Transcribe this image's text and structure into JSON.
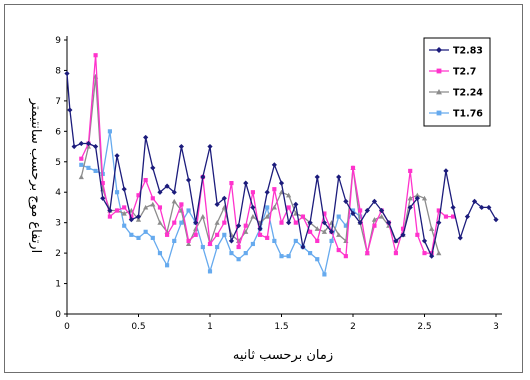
{
  "chart_data": {
    "type": "line",
    "title": "",
    "xlabel": "زمان برحسب ثانیه",
    "ylabel": "ارتفاع موج برحسب سانتیمتر",
    "xlim": [
      0,
      3
    ],
    "ylim": [
      0,
      9
    ],
    "x_ticks": [
      "0",
      "0.5",
      "1",
      "1.5",
      "2",
      "2.5",
      "3"
    ],
    "y_ticks": [
      "0",
      "1",
      "2",
      "3",
      "4",
      "5",
      "6",
      "7",
      "8",
      "9"
    ],
    "grid": false,
    "legend_position": "top-right",
    "series": [
      {
        "name": "T2.83",
        "color": "#1c1c7c",
        "marker": "diamond",
        "points": [
          [
            0,
            7.9
          ],
          [
            0.02,
            6.7
          ],
          [
            0.05,
            5.5
          ],
          [
            0.1,
            5.6
          ],
          [
            0.15,
            5.6
          ],
          [
            0.2,
            5.5
          ],
          [
            0.25,
            3.8
          ],
          [
            0.3,
            3.4
          ],
          [
            0.35,
            5.2
          ],
          [
            0.4,
            4.1
          ],
          [
            0.45,
            3.1
          ],
          [
            0.5,
            3.2
          ],
          [
            0.55,
            5.8
          ],
          [
            0.6,
            4.8
          ],
          [
            0.65,
            4.0
          ],
          [
            0.7,
            4.2
          ],
          [
            0.75,
            4.0
          ],
          [
            0.8,
            5.5
          ],
          [
            0.85,
            4.4
          ],
          [
            0.9,
            3.0
          ],
          [
            0.95,
            4.5
          ],
          [
            1.0,
            5.5
          ],
          [
            1.05,
            3.6
          ],
          [
            1.1,
            3.8
          ],
          [
            1.15,
            2.4
          ],
          [
            1.2,
            2.9
          ],
          [
            1.25,
            4.3
          ],
          [
            1.3,
            3.5
          ],
          [
            1.35,
            2.8
          ],
          [
            1.4,
            4.0
          ],
          [
            1.45,
            4.9
          ],
          [
            1.5,
            4.3
          ],
          [
            1.55,
            3.0
          ],
          [
            1.6,
            3.6
          ],
          [
            1.65,
            2.2
          ],
          [
            1.7,
            3.0
          ],
          [
            1.75,
            4.5
          ],
          [
            1.8,
            3.0
          ],
          [
            1.85,
            2.7
          ],
          [
            1.9,
            4.5
          ],
          [
            1.95,
            3.7
          ],
          [
            2.0,
            3.3
          ],
          [
            2.05,
            3.0
          ],
          [
            2.1,
            3.4
          ],
          [
            2.15,
            3.7
          ],
          [
            2.2,
            3.4
          ],
          [
            2.25,
            3.0
          ],
          [
            2.3,
            2.4
          ],
          [
            2.35,
            2.6
          ],
          [
            2.4,
            3.5
          ],
          [
            2.45,
            3.8
          ],
          [
            2.5,
            2.4
          ],
          [
            2.55,
            1.9
          ],
          [
            2.6,
            3.0
          ],
          [
            2.65,
            4.7
          ],
          [
            2.7,
            3.5
          ],
          [
            2.75,
            2.5
          ],
          [
            2.8,
            3.2
          ],
          [
            2.85,
            3.7
          ],
          [
            2.9,
            3.5
          ],
          [
            2.95,
            3.5
          ],
          [
            3.0,
            3.1
          ]
        ]
      },
      {
        "name": "T2.7",
        "color": "#ff33cc",
        "marker": "square",
        "points": [
          [
            0.1,
            5.1
          ],
          [
            0.15,
            5.6
          ],
          [
            0.2,
            8.5
          ],
          [
            0.25,
            4.3
          ],
          [
            0.3,
            3.2
          ],
          [
            0.35,
            3.4
          ],
          [
            0.4,
            3.5
          ],
          [
            0.45,
            3.2
          ],
          [
            0.5,
            3.9
          ],
          [
            0.55,
            4.4
          ],
          [
            0.6,
            3.8
          ],
          [
            0.65,
            3.5
          ],
          [
            0.7,
            2.6
          ],
          [
            0.75,
            3.0
          ],
          [
            0.8,
            3.6
          ],
          [
            0.85,
            2.4
          ],
          [
            0.9,
            2.6
          ],
          [
            0.95,
            4.5
          ],
          [
            1.0,
            2.3
          ],
          [
            1.05,
            2.6
          ],
          [
            1.1,
            3.0
          ],
          [
            1.15,
            4.3
          ],
          [
            1.2,
            2.2
          ],
          [
            1.25,
            2.9
          ],
          [
            1.3,
            4.0
          ],
          [
            1.35,
            2.6
          ],
          [
            1.4,
            2.5
          ],
          [
            1.45,
            4.1
          ],
          [
            1.5,
            3.0
          ],
          [
            1.55,
            3.5
          ],
          [
            1.6,
            3.0
          ],
          [
            1.65,
            3.2
          ],
          [
            1.7,
            2.7
          ],
          [
            1.75,
            2.4
          ],
          [
            1.8,
            3.3
          ],
          [
            1.85,
            2.7
          ],
          [
            1.9,
            2.1
          ],
          [
            1.95,
            1.9
          ],
          [
            2.0,
            4.8
          ],
          [
            2.05,
            3.4
          ],
          [
            2.1,
            2.0
          ],
          [
            2.15,
            2.9
          ],
          [
            2.2,
            3.4
          ],
          [
            2.25,
            3.0
          ],
          [
            2.3,
            2.0
          ],
          [
            2.35,
            2.8
          ],
          [
            2.4,
            4.7
          ],
          [
            2.45,
            2.6
          ],
          [
            2.5,
            2.0
          ],
          [
            2.55,
            2.0
          ],
          [
            2.6,
            3.4
          ],
          [
            2.65,
            3.2
          ],
          [
            2.7,
            3.2
          ]
        ]
      },
      {
        "name": "T2.24",
        "color": "#8c8c8c",
        "marker": "triangle",
        "points": [
          [
            0.1,
            4.5
          ],
          [
            0.15,
            5.5
          ],
          [
            0.2,
            7.8
          ],
          [
            0.25,
            4.1
          ],
          [
            0.3,
            3.4
          ],
          [
            0.35,
            3.4
          ],
          [
            0.4,
            3.3
          ],
          [
            0.45,
            3.4
          ],
          [
            0.5,
            3.1
          ],
          [
            0.55,
            3.5
          ],
          [
            0.6,
            3.6
          ],
          [
            0.65,
            3.0
          ],
          [
            0.7,
            2.7
          ],
          [
            0.75,
            3.7
          ],
          [
            0.8,
            3.4
          ],
          [
            0.85,
            2.3
          ],
          [
            0.9,
            2.8
          ],
          [
            0.95,
            3.2
          ],
          [
            1.0,
            2.3
          ],
          [
            1.05,
            3.0
          ],
          [
            1.1,
            3.5
          ],
          [
            1.15,
            2.6
          ],
          [
            1.2,
            2.4
          ],
          [
            1.25,
            2.7
          ],
          [
            1.3,
            3.2
          ],
          [
            1.35,
            3.0
          ],
          [
            1.4,
            3.2
          ],
          [
            1.45,
            3.5
          ],
          [
            1.5,
            4.0
          ],
          [
            1.55,
            3.9
          ],
          [
            1.6,
            3.3
          ],
          [
            1.65,
            3.2
          ],
          [
            1.7,
            3.0
          ],
          [
            1.75,
            2.8
          ],
          [
            1.8,
            2.7
          ],
          [
            1.85,
            3.0
          ],
          [
            1.9,
            2.6
          ],
          [
            1.95,
            2.4
          ],
          [
            2.0,
            4.8
          ],
          [
            2.05,
            3.0
          ],
          [
            2.1,
            2.0
          ],
          [
            2.15,
            3.1
          ],
          [
            2.2,
            3.2
          ],
          [
            2.25,
            2.9
          ],
          [
            2.3,
            2.4
          ],
          [
            2.35,
            2.6
          ],
          [
            2.4,
            3.8
          ],
          [
            2.45,
            3.9
          ],
          [
            2.5,
            3.8
          ],
          [
            2.55,
            2.8
          ],
          [
            2.6,
            2.0
          ]
        ]
      },
      {
        "name": "T1.76",
        "color": "#66aaee",
        "marker": "square",
        "points": [
          [
            0.1,
            4.9
          ],
          [
            0.15,
            4.8
          ],
          [
            0.2,
            4.7
          ],
          [
            0.25,
            4.6
          ],
          [
            0.3,
            6.0
          ],
          [
            0.35,
            4.0
          ],
          [
            0.4,
            2.9
          ],
          [
            0.45,
            2.6
          ],
          [
            0.5,
            2.5
          ],
          [
            0.55,
            2.7
          ],
          [
            0.6,
            2.5
          ],
          [
            0.65,
            2.0
          ],
          [
            0.7,
            1.6
          ],
          [
            0.75,
            2.4
          ],
          [
            0.8,
            3.0
          ],
          [
            0.85,
            3.4
          ],
          [
            0.9,
            3.0
          ],
          [
            0.95,
            2.2
          ],
          [
            1.0,
            1.4
          ],
          [
            1.05,
            2.2
          ],
          [
            1.1,
            2.6
          ],
          [
            1.15,
            2.0
          ],
          [
            1.2,
            1.8
          ],
          [
            1.25,
            2.0
          ],
          [
            1.3,
            2.3
          ],
          [
            1.35,
            2.8
          ],
          [
            1.4,
            3.5
          ],
          [
            1.45,
            2.4
          ],
          [
            1.5,
            1.9
          ],
          [
            1.55,
            1.9
          ],
          [
            1.6,
            2.4
          ],
          [
            1.65,
            2.2
          ],
          [
            1.7,
            2.0
          ],
          [
            1.75,
            1.8
          ],
          [
            1.8,
            1.3
          ],
          [
            1.85,
            2.4
          ],
          [
            1.9,
            3.2
          ],
          [
            1.95,
            2.9
          ],
          [
            2.0,
            3.4
          ],
          [
            2.05,
            3.2
          ]
        ]
      }
    ]
  }
}
